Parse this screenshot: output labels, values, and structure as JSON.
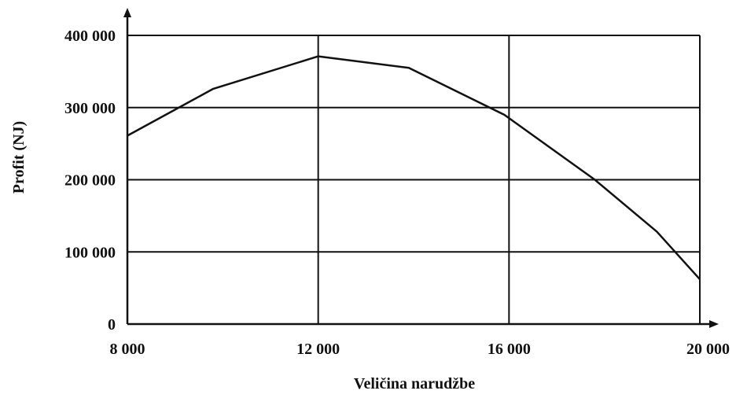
{
  "chart_data": {
    "type": "line",
    "xlabel": "Veličina narudžbe",
    "ylabel": "Profit (NJ)",
    "xlim": [
      8000,
      20000
    ],
    "ylim": [
      0,
      400000
    ],
    "x_ticks": [
      "8 000",
      "12 000",
      "16 000",
      "20 000"
    ],
    "y_ticks": [
      "0",
      "100 000",
      "200 000",
      "300 000",
      "400 000"
    ],
    "grid": true,
    "series": [
      {
        "x": [
          8000,
          9800,
          12000,
          13900,
          15900,
          17800,
          19100,
          20000
        ],
        "y": [
          261000,
          326000,
          371000,
          355000,
          290000,
          200000,
          128000,
          62000
        ]
      }
    ]
  }
}
